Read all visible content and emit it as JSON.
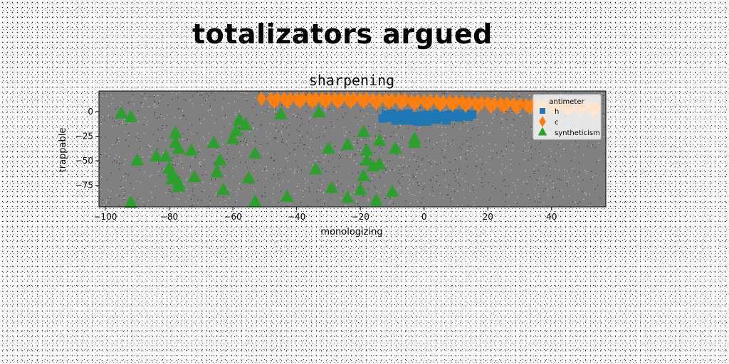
{
  "figure_title": "totalizators argued",
  "chart_data": {
    "type": "scatter",
    "title": "sharpening",
    "xlabel": "monologizing",
    "ylabel": "trappable",
    "xlim": [
      -102,
      57
    ],
    "ylim": [
      -97,
      21
    ],
    "xticks": [
      -100,
      -80,
      -60,
      -40,
      -20,
      0,
      20,
      40
    ],
    "yticks": [
      0,
      -25,
      -50,
      -75
    ],
    "grid": false,
    "plot_background": "#808080",
    "legend": {
      "title": "antimeter",
      "placement": "upper right"
    },
    "series": [
      {
        "name": "h",
        "marker": "square",
        "color": "#1f77b4",
        "points": [
          [
            -12,
            -3
          ],
          [
            -11,
            -6
          ],
          [
            -10,
            -2
          ],
          [
            -9,
            -5
          ],
          [
            -8,
            -8
          ],
          [
            -7,
            -3
          ],
          [
            -6,
            -6
          ],
          [
            -5,
            -2
          ],
          [
            -4,
            -9
          ],
          [
            -3,
            -5
          ],
          [
            -2,
            -10
          ],
          [
            -1,
            -4
          ],
          [
            0,
            -7
          ],
          [
            1,
            -3
          ],
          [
            2,
            -8
          ],
          [
            3,
            -5
          ],
          [
            4,
            -2
          ],
          [
            5,
            -6
          ],
          [
            7,
            -9
          ],
          [
            8,
            -3
          ],
          [
            9,
            -5
          ],
          [
            10,
            -2
          ],
          [
            11,
            -6
          ],
          [
            12,
            -4
          ],
          [
            13,
            -2
          ],
          [
            14,
            -5
          ],
          [
            15,
            -3
          ],
          [
            -13,
            -7
          ],
          [
            -6,
            -9
          ],
          [
            -1,
            -10
          ],
          [
            3,
            -8
          ],
          [
            6,
            -4
          ],
          [
            -9,
            -9
          ],
          [
            -4,
            -6
          ],
          [
            1,
            -10
          ],
          [
            4,
            -8
          ]
        ]
      },
      {
        "name": "c",
        "marker": "diamond",
        "color": "#ff7f0e",
        "points": [
          [
            -51,
            13
          ],
          [
            -48,
            13
          ],
          [
            -46,
            13
          ],
          [
            -44,
            13
          ],
          [
            -42,
            13
          ],
          [
            -40,
            13
          ],
          [
            -38,
            13
          ],
          [
            -36,
            13
          ],
          [
            -34,
            13
          ],
          [
            -32,
            13
          ],
          [
            -30,
            13
          ],
          [
            -28,
            13
          ],
          [
            -26,
            13
          ],
          [
            -24,
            13
          ],
          [
            -22,
            13
          ],
          [
            -20,
            13
          ],
          [
            -18,
            13
          ],
          [
            -16,
            12
          ],
          [
            -14,
            12
          ],
          [
            -12,
            12
          ],
          [
            -10,
            12
          ],
          [
            -8,
            12
          ],
          [
            -6,
            12
          ],
          [
            -4,
            11
          ],
          [
            -2,
            11
          ],
          [
            0,
            11
          ],
          [
            2,
            11
          ],
          [
            4,
            11
          ],
          [
            6,
            10
          ],
          [
            8,
            10
          ],
          [
            10,
            10
          ],
          [
            12,
            10
          ],
          [
            14,
            9
          ],
          [
            16,
            9
          ],
          [
            18,
            9
          ],
          [
            20,
            9
          ],
          [
            22,
            8
          ],
          [
            24,
            8
          ],
          [
            26,
            8
          ],
          [
            28,
            8
          ],
          [
            30,
            7
          ],
          [
            32,
            7
          ],
          [
            34,
            7
          ],
          [
            36,
            6
          ],
          [
            38,
            6
          ],
          [
            40,
            6
          ],
          [
            42,
            6
          ],
          [
            44,
            5
          ],
          [
            46,
            5
          ],
          [
            48,
            5
          ],
          [
            50,
            5
          ],
          [
            52,
            4
          ],
          [
            54,
            4
          ],
          [
            -47,
            10
          ],
          [
            -43,
            10
          ],
          [
            -39,
            10
          ],
          [
            -35,
            10
          ],
          [
            -31,
            10
          ],
          [
            -27,
            10
          ],
          [
            -23,
            10
          ],
          [
            -19,
            10
          ],
          [
            -15,
            9
          ],
          [
            -11,
            9
          ],
          [
            -7,
            9
          ],
          [
            -3,
            8
          ],
          [
            1,
            8
          ],
          [
            5,
            7
          ],
          [
            9,
            7
          ],
          [
            13,
            6
          ],
          [
            17,
            6
          ],
          [
            21,
            5
          ],
          [
            25,
            5
          ],
          [
            29,
            4
          ],
          [
            33,
            4
          ],
          [
            37,
            3
          ],
          [
            41,
            3
          ],
          [
            45,
            2
          ],
          [
            49,
            2
          ],
          [
            53,
            1
          ]
        ]
      },
      {
        "name": "syntheticism",
        "marker": "triangle",
        "color": "#2ca02c",
        "points": [
          [
            -95,
            -2
          ],
          [
            -92,
            -6
          ],
          [
            -90,
            -50
          ],
          [
            -92,
            -93
          ],
          [
            -84,
            -46
          ],
          [
            -81,
            -46
          ],
          [
            -80,
            -58
          ],
          [
            -79,
            -63
          ],
          [
            -78,
            -22
          ],
          [
            -78,
            -32
          ],
          [
            -77,
            -38
          ],
          [
            -79,
            -69
          ],
          [
            -77,
            -73
          ],
          [
            -77,
            -77
          ],
          [
            -73,
            -40
          ],
          [
            -72,
            -67
          ],
          [
            -66,
            -32
          ],
          [
            -65,
            -62
          ],
          [
            -64,
            -50
          ],
          [
            -63,
            -80
          ],
          [
            -60,
            -28
          ],
          [
            -59,
            -20
          ],
          [
            -58,
            -9
          ],
          [
            -56,
            -14
          ],
          [
            -55,
            -68
          ],
          [
            -53,
            -43
          ],
          [
            -53,
            -92
          ],
          [
            -45,
            -3
          ],
          [
            -43,
            -87
          ],
          [
            -34,
            -59
          ],
          [
            -33,
            -1
          ],
          [
            -30,
            -38
          ],
          [
            -29,
            -78
          ],
          [
            -24,
            -34
          ],
          [
            -24,
            -88
          ],
          [
            -20,
            -80
          ],
          [
            -19,
            -21
          ],
          [
            -19,
            -66
          ],
          [
            -18,
            -50
          ],
          [
            -18,
            -40
          ],
          [
            -16,
            -56
          ],
          [
            -15,
            -91
          ],
          [
            -14,
            -54
          ],
          [
            -14,
            -30
          ],
          [
            -9,
            -38
          ],
          [
            -10,
            -82
          ],
          [
            -3,
            -28
          ],
          [
            -3,
            -32
          ]
        ]
      }
    ]
  }
}
